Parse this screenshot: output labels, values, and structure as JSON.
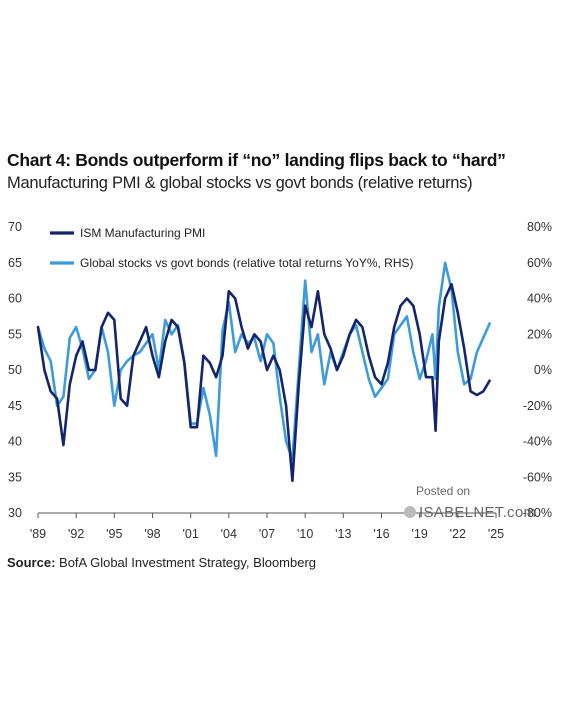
{
  "header": {
    "title": "Chart 4: Bonds outperform if “no” landing flips back to “hard”",
    "subtitle": "Manufacturing PMI & global stocks vs govt bonds (relative returns)"
  },
  "footer": {
    "source_label": "Source:",
    "source_text": " BofA Global Investment Strategy, Bloomberg"
  },
  "watermark": {
    "line1": "Posted on",
    "line2": "ISABELNET.com"
  },
  "colors": {
    "pmi": "#14256b",
    "rel": "#3d9bdc",
    "axis": "#333333"
  },
  "chart_data": {
    "type": "line",
    "title": "Chart 4: Bonds outperform if “no” landing flips back to “hard”",
    "subtitle": "Manufacturing PMI & global stocks vs govt bonds (relative returns)",
    "x_range": [
      1989.0,
      2025.0
    ],
    "x_ticks": [
      "'89",
      "'92",
      "'95",
      "'98",
      "'01",
      "'04",
      "'07",
      "'10",
      "'13",
      "'16",
      "'19",
      "'22",
      "'25"
    ],
    "x_tick_years": [
      1989,
      1992,
      1995,
      1998,
      2001,
      2004,
      2007,
      2010,
      2013,
      2016,
      2019,
      2022,
      2025
    ],
    "y_left": {
      "range": [
        30,
        70
      ],
      "ticks": [
        "30",
        "35",
        "40",
        "45",
        "50",
        "55",
        "60",
        "65",
        "70"
      ]
    },
    "y_right": {
      "range": [
        -80,
        80
      ],
      "unit": "%",
      "ticks": [
        "-80%",
        "-60%",
        "-40%",
        "-20%",
        "0%",
        "20%",
        "40%",
        "60%",
        "80%"
      ]
    },
    "legend": {
      "placement": "top-left"
    },
    "grid": false,
    "series": [
      {
        "name": "ISM Manufacturing PMI",
        "axis": "left",
        "x": [
          1989.0,
          1989.5,
          1990.0,
          1990.5,
          1991.0,
          1991.5,
          1992.0,
          1992.5,
          1993.0,
          1993.5,
          1994.0,
          1994.5,
          1995.0,
          1995.5,
          1996.0,
          1996.5,
          1997.0,
          1997.5,
          1998.0,
          1998.5,
          1999.0,
          1999.5,
          2000.0,
          2000.5,
          2001.0,
          2001.5,
          2002.0,
          2002.5,
          2003.0,
          2003.5,
          2004.0,
          2004.5,
          2005.0,
          2005.5,
          2006.0,
          2006.5,
          2007.0,
          2007.5,
          2008.0,
          2008.5,
          2009.0,
          2009.5,
          2010.0,
          2010.5,
          2011.0,
          2011.5,
          2012.0,
          2012.5,
          2013.0,
          2013.5,
          2014.0,
          2014.5,
          2015.0,
          2015.5,
          2016.0,
          2016.5,
          2017.0,
          2017.5,
          2018.0,
          2018.5,
          2019.0,
          2019.5,
          2020.0,
          2020.25,
          2020.5,
          2021.0,
          2021.5,
          2022.0,
          2022.5,
          2023.0,
          2023.5,
          2024.0,
          2024.5
        ],
        "values": [
          56,
          50,
          47,
          46,
          39.5,
          48,
          52,
          54,
          50,
          50,
          56,
          58,
          57,
          46,
          45,
          52,
          54,
          56,
          52,
          49,
          54,
          57,
          56,
          51,
          42,
          42,
          52,
          51,
          49,
          52,
          61,
          60,
          56,
          53,
          55,
          54,
          50,
          52,
          50,
          45,
          34.5,
          48,
          59,
          56,
          61,
          55,
          53,
          50,
          52,
          55,
          57,
          56,
          52,
          49,
          48,
          51,
          56,
          59,
          60,
          59,
          55,
          49,
          49,
          41.5,
          54,
          60,
          62,
          58,
          53,
          47,
          46.5,
          47,
          48.5
        ]
      },
      {
        "name": "Global stocks vs govt bonds (relative total returns YoY%, RHS)",
        "axis": "right",
        "x": [
          1989.0,
          1989.5,
          1990.0,
          1990.5,
          1991.0,
          1991.5,
          1992.0,
          1992.5,
          1993.0,
          1993.5,
          1994.0,
          1994.5,
          1995.0,
          1995.5,
          1996.0,
          1996.5,
          1997.0,
          1997.5,
          1998.0,
          1998.5,
          1999.0,
          1999.5,
          2000.0,
          2000.5,
          2001.0,
          2001.5,
          2002.0,
          2002.5,
          2003.0,
          2003.5,
          2004.0,
          2004.5,
          2005.0,
          2005.5,
          2006.0,
          2006.5,
          2007.0,
          2007.5,
          2008.0,
          2008.5,
          2009.0,
          2009.5,
          2010.0,
          2010.5,
          2011.0,
          2011.5,
          2012.0,
          2012.5,
          2013.0,
          2013.5,
          2014.0,
          2014.5,
          2015.0,
          2015.5,
          2016.0,
          2016.5,
          2017.0,
          2017.5,
          2018.0,
          2018.5,
          2019.0,
          2019.5,
          2020.0,
          2020.25,
          2020.5,
          2021.0,
          2021.5,
          2022.0,
          2022.5,
          2023.0,
          2023.5,
          2024.0,
          2024.5
        ],
        "values": [
          24,
          12,
          5,
          -20,
          -15,
          18,
          24,
          12,
          -5,
          0,
          24,
          10,
          -20,
          0,
          5,
          8,
          10,
          15,
          20,
          0,
          28,
          20,
          25,
          5,
          -30,
          -30,
          -10,
          -25,
          -48,
          22,
          38,
          10,
          20,
          15,
          18,
          5,
          20,
          15,
          -15,
          -40,
          -50,
          0,
          50,
          10,
          20,
          -8,
          10,
          0,
          10,
          20,
          25,
          10,
          -5,
          -15,
          -10,
          -5,
          20,
          25,
          30,
          10,
          -5,
          5,
          20,
          -5,
          35,
          60,
          45,
          10,
          -8,
          -5,
          10,
          18,
          26
        ]
      }
    ]
  }
}
